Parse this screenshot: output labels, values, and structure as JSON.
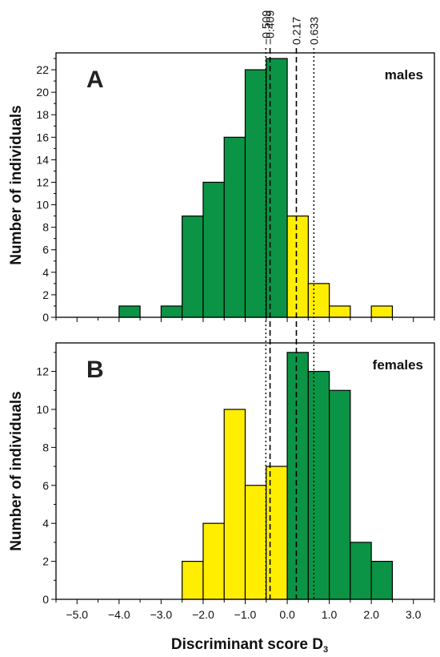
{
  "chart_data": {
    "type": "bar",
    "xlabel": "Discriminant score D",
    "xlabel_subscript": "3",
    "ylabel": "Number of individuals",
    "x_ticks": [
      "-5.0",
      "-4.0",
      "-3.0",
      "-2.0",
      "-1.0",
      "0.0",
      "1.0",
      "2.0",
      "3.0"
    ],
    "x_range": [
      -5.5,
      3.5
    ],
    "reference_lines": [
      {
        "value": -0.509,
        "label": "−0.509",
        "style": "dotted"
      },
      {
        "value": -0.409,
        "label": "−0.409",
        "style": "dashed"
      },
      {
        "value": 0.217,
        "label": "0.217",
        "style": "dashed"
      },
      {
        "value": 0.633,
        "label": "0.633",
        "style": "dotted"
      }
    ],
    "colors": {
      "green": "#0b9445",
      "yellow": "#ffee00"
    },
    "panels": [
      {
        "letter": "A",
        "name": "males",
        "ylim": [
          0,
          23.5
        ],
        "y_ticks": [
          0,
          2,
          4,
          6,
          8,
          10,
          12,
          14,
          16,
          18,
          20,
          22
        ],
        "bars": [
          {
            "x0": -4.0,
            "x1": -3.5,
            "value": 1,
            "color": "green"
          },
          {
            "x0": -3.0,
            "x1": -2.5,
            "value": 1,
            "color": "green"
          },
          {
            "x0": -2.5,
            "x1": -2.0,
            "value": 9,
            "color": "green"
          },
          {
            "x0": -2.0,
            "x1": -1.5,
            "value": 12,
            "color": "green"
          },
          {
            "x0": -1.5,
            "x1": -1.0,
            "value": 16,
            "color": "green"
          },
          {
            "x0": -1.0,
            "x1": -0.5,
            "value": 22,
            "color": "green"
          },
          {
            "x0": -0.5,
            "x1": 0.0,
            "value": 23,
            "color": "green"
          },
          {
            "x0": 0.0,
            "x1": 0.5,
            "value": 9,
            "color": "yellow"
          },
          {
            "x0": 0.5,
            "x1": 1.0,
            "value": 3,
            "color": "yellow"
          },
          {
            "x0": 1.0,
            "x1": 1.5,
            "value": 1,
            "color": "yellow"
          },
          {
            "x0": 2.0,
            "x1": 2.5,
            "value": 1,
            "color": "yellow"
          }
        ]
      },
      {
        "letter": "B",
        "name": "females",
        "ylim": [
          0,
          13.5
        ],
        "y_ticks": [
          0,
          2,
          4,
          6,
          8,
          10,
          12
        ],
        "bars": [
          {
            "x0": -2.5,
            "x1": -2.0,
            "value": 2,
            "color": "yellow"
          },
          {
            "x0": -2.0,
            "x1": -1.5,
            "value": 4,
            "color": "yellow"
          },
          {
            "x0": -1.5,
            "x1": -1.0,
            "value": 10,
            "color": "yellow"
          },
          {
            "x0": -1.0,
            "x1": -0.5,
            "value": 6,
            "color": "yellow"
          },
          {
            "x0": -0.5,
            "x1": 0.0,
            "value": 7,
            "color": "yellow"
          },
          {
            "x0": 0.0,
            "x1": 0.5,
            "value": 13,
            "color": "green"
          },
          {
            "x0": 0.5,
            "x1": 1.0,
            "value": 12,
            "color": "green"
          },
          {
            "x0": 1.0,
            "x1": 1.5,
            "value": 11,
            "color": "green"
          },
          {
            "x0": 1.5,
            "x1": 2.0,
            "value": 3,
            "color": "green"
          },
          {
            "x0": 2.0,
            "x1": 2.5,
            "value": 2,
            "color": "green"
          }
        ]
      }
    ]
  }
}
